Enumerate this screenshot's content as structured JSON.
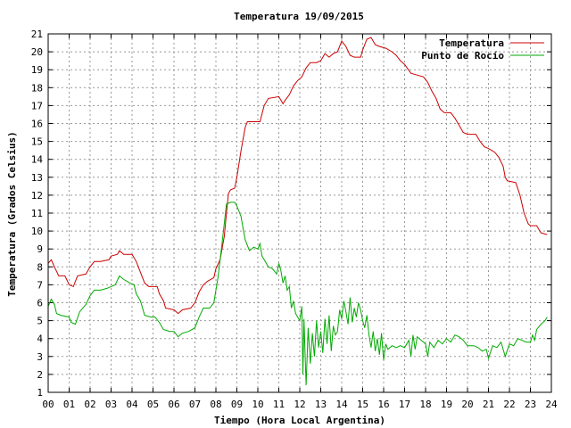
{
  "chart_data": {
    "type": "line",
    "title": "Temperatura 19/09/2015",
    "xlabel": "Tiempo (Hora Local Argentina)",
    "ylabel": "Temperatura (Grados Celsius)",
    "xlim": [
      0,
      24
    ],
    "ylim": [
      1,
      21
    ],
    "grid": true,
    "legend_position": "top-right",
    "x_ticks": [
      "00",
      "01",
      "02",
      "03",
      "04",
      "05",
      "06",
      "07",
      "08",
      "09",
      "10",
      "11",
      "12",
      "13",
      "14",
      "15",
      "16",
      "17",
      "18",
      "19",
      "20",
      "21",
      "22",
      "23",
      "24"
    ],
    "y_ticks": [
      "1",
      "2",
      "3",
      "4",
      "5",
      "6",
      "7",
      "8",
      "9",
      "10",
      "11",
      "12",
      "13",
      "14",
      "15",
      "16",
      "17",
      "18",
      "19",
      "20",
      "21"
    ],
    "series": [
      {
        "name": "Temperatura",
        "color": "#cc0000",
        "points": [
          [
            0,
            8.2
          ],
          [
            0.15,
            8.4
          ],
          [
            0.3,
            8.0
          ],
          [
            0.5,
            7.5
          ],
          [
            0.8,
            7.5
          ],
          [
            1.0,
            7.0
          ],
          [
            1.2,
            6.9
          ],
          [
            1.4,
            7.5
          ],
          [
            1.8,
            7.6
          ],
          [
            2.0,
            8.0
          ],
          [
            2.2,
            8.3
          ],
          [
            2.5,
            8.3
          ],
          [
            2.9,
            8.4
          ],
          [
            3.0,
            8.6
          ],
          [
            3.3,
            8.7
          ],
          [
            3.4,
            8.9
          ],
          [
            3.6,
            8.7
          ],
          [
            4.0,
            8.7
          ],
          [
            4.2,
            8.3
          ],
          [
            4.4,
            7.7
          ],
          [
            4.6,
            7.1
          ],
          [
            4.8,
            6.9
          ],
          [
            5.2,
            6.9
          ],
          [
            5.3,
            6.5
          ],
          [
            5.5,
            6.1
          ],
          [
            5.6,
            5.7
          ],
          [
            6.0,
            5.6
          ],
          [
            6.2,
            5.4
          ],
          [
            6.4,
            5.6
          ],
          [
            6.8,
            5.7
          ],
          [
            7.0,
            6.0
          ],
          [
            7.2,
            6.6
          ],
          [
            7.4,
            7.0
          ],
          [
            7.6,
            7.2
          ],
          [
            7.9,
            7.4
          ],
          [
            8.0,
            7.9
          ],
          [
            8.2,
            8.4
          ],
          [
            8.4,
            9.7
          ],
          [
            8.5,
            11.0
          ],
          [
            8.6,
            12.1
          ],
          [
            8.7,
            12.3
          ],
          [
            8.9,
            12.4
          ],
          [
            9.0,
            13.0
          ],
          [
            9.2,
            14.5
          ],
          [
            9.4,
            15.8
          ],
          [
            9.5,
            16.1
          ],
          [
            10.1,
            16.1
          ],
          [
            10.3,
            17.0
          ],
          [
            10.5,
            17.4
          ],
          [
            11.0,
            17.5
          ],
          [
            11.2,
            17.1
          ],
          [
            11.3,
            17.3
          ],
          [
            11.5,
            17.6
          ],
          [
            11.7,
            18.1
          ],
          [
            11.9,
            18.4
          ],
          [
            12.1,
            18.6
          ],
          [
            12.3,
            19.1
          ],
          [
            12.5,
            19.4
          ],
          [
            12.8,
            19.4
          ],
          [
            13.0,
            19.5
          ],
          [
            13.2,
            19.9
          ],
          [
            13.4,
            19.7
          ],
          [
            13.6,
            19.9
          ],
          [
            13.8,
            20.0
          ],
          [
            14.0,
            20.6
          ],
          [
            14.2,
            20.3
          ],
          [
            14.4,
            19.8
          ],
          [
            14.6,
            19.7
          ],
          [
            14.9,
            19.7
          ],
          [
            15.0,
            20.1
          ],
          [
            15.2,
            20.7
          ],
          [
            15.4,
            20.8
          ],
          [
            15.6,
            20.4
          ],
          [
            15.8,
            20.3
          ],
          [
            16.1,
            20.2
          ],
          [
            16.4,
            20.0
          ],
          [
            16.6,
            19.8
          ],
          [
            16.8,
            19.5
          ],
          [
            17.0,
            19.3
          ],
          [
            17.3,
            18.8
          ],
          [
            17.6,
            18.7
          ],
          [
            17.9,
            18.6
          ],
          [
            18.1,
            18.3
          ],
          [
            18.3,
            17.8
          ],
          [
            18.5,
            17.4
          ],
          [
            18.7,
            16.8
          ],
          [
            18.9,
            16.6
          ],
          [
            19.2,
            16.6
          ],
          [
            19.4,
            16.3
          ],
          [
            19.6,
            15.9
          ],
          [
            19.8,
            15.5
          ],
          [
            20.0,
            15.4
          ],
          [
            20.4,
            15.4
          ],
          [
            20.6,
            15.0
          ],
          [
            20.8,
            14.7
          ],
          [
            21.0,
            14.6
          ],
          [
            21.3,
            14.4
          ],
          [
            21.5,
            14.1
          ],
          [
            21.7,
            13.6
          ],
          [
            21.8,
            13.0
          ],
          [
            21.9,
            12.8
          ],
          [
            22.3,
            12.7
          ],
          [
            22.5,
            12.0
          ],
          [
            22.7,
            11.0
          ],
          [
            22.9,
            10.4
          ],
          [
            23.0,
            10.3
          ],
          [
            23.3,
            10.3
          ],
          [
            23.5,
            9.9
          ],
          [
            23.8,
            9.8
          ]
        ]
      },
      {
        "name": "Punto de Rocío",
        "color": "#00aa00",
        "points": [
          [
            0,
            5.8
          ],
          [
            0.15,
            6.2
          ],
          [
            0.3,
            5.9
          ],
          [
            0.4,
            5.4
          ],
          [
            0.6,
            5.3
          ],
          [
            1.0,
            5.2
          ],
          [
            1.1,
            4.9
          ],
          [
            1.3,
            4.8
          ],
          [
            1.5,
            5.5
          ],
          [
            1.8,
            5.9
          ],
          [
            2.0,
            6.4
          ],
          [
            2.2,
            6.7
          ],
          [
            2.5,
            6.7
          ],
          [
            2.8,
            6.8
          ],
          [
            3.0,
            6.9
          ],
          [
            3.2,
            7.0
          ],
          [
            3.4,
            7.5
          ],
          [
            3.6,
            7.3
          ],
          [
            3.9,
            7.1
          ],
          [
            4.1,
            7.0
          ],
          [
            4.2,
            6.5
          ],
          [
            4.4,
            6.1
          ],
          [
            4.5,
            5.7
          ],
          [
            4.6,
            5.3
          ],
          [
            4.9,
            5.2
          ],
          [
            5.1,
            5.2
          ],
          [
            5.3,
            4.9
          ],
          [
            5.5,
            4.5
          ],
          [
            5.8,
            4.4
          ],
          [
            6.0,
            4.4
          ],
          [
            6.2,
            4.1
          ],
          [
            6.4,
            4.3
          ],
          [
            6.7,
            4.4
          ],
          [
            7.0,
            4.6
          ],
          [
            7.2,
            5.2
          ],
          [
            7.4,
            5.7
          ],
          [
            7.7,
            5.7
          ],
          [
            7.9,
            6.0
          ],
          [
            8.1,
            7.4
          ],
          [
            8.3,
            9.4
          ],
          [
            8.5,
            11.5
          ],
          [
            8.7,
            11.6
          ],
          [
            8.9,
            11.6
          ],
          [
            9.0,
            11.4
          ],
          [
            9.2,
            10.8
          ],
          [
            9.3,
            10.1
          ],
          [
            9.4,
            9.5
          ],
          [
            9.6,
            8.9
          ],
          [
            9.8,
            9.1
          ],
          [
            10.0,
            9.0
          ],
          [
            10.1,
            9.3
          ],
          [
            10.2,
            8.6
          ],
          [
            10.3,
            8.4
          ],
          [
            10.5,
            8.0
          ],
          [
            10.7,
            7.9
          ],
          [
            10.9,
            7.6
          ],
          [
            11.0,
            8.2
          ],
          [
            11.1,
            7.8
          ],
          [
            11.2,
            7.1
          ],
          [
            11.3,
            7.5
          ],
          [
            11.4,
            6.7
          ],
          [
            11.5,
            6.9
          ],
          [
            11.6,
            5.7
          ],
          [
            11.7,
            6.1
          ],
          [
            11.8,
            5.4
          ],
          [
            12.0,
            5.0
          ],
          [
            12.1,
            5.8
          ],
          [
            12.15,
            2.0
          ],
          [
            12.2,
            5.1
          ],
          [
            12.3,
            1.4
          ],
          [
            12.4,
            4.6
          ],
          [
            12.5,
            2.6
          ],
          [
            12.6,
            4.3
          ],
          [
            12.7,
            3.0
          ],
          [
            12.8,
            5.0
          ],
          [
            12.9,
            3.5
          ],
          [
            13.0,
            4.4
          ],
          [
            13.1,
            3.2
          ],
          [
            13.2,
            5.1
          ],
          [
            13.3,
            3.7
          ],
          [
            13.4,
            5.3
          ],
          [
            13.5,
            3.3
          ],
          [
            13.6,
            4.7
          ],
          [
            13.7,
            4.2
          ],
          [
            13.8,
            4.4
          ],
          [
            13.9,
            5.6
          ],
          [
            14.0,
            5.1
          ],
          [
            14.1,
            6.1
          ],
          [
            14.2,
            5.5
          ],
          [
            14.3,
            4.8
          ],
          [
            14.4,
            6.3
          ],
          [
            14.5,
            4.9
          ],
          [
            14.6,
            5.7
          ],
          [
            14.7,
            5.2
          ],
          [
            14.8,
            6.0
          ],
          [
            14.9,
            5.6
          ],
          [
            15.0,
            5.0
          ],
          [
            15.1,
            4.6
          ],
          [
            15.2,
            5.3
          ],
          [
            15.3,
            4.2
          ],
          [
            15.4,
            3.5
          ],
          [
            15.5,
            4.4
          ],
          [
            15.6,
            3.3
          ],
          [
            15.7,
            4.0
          ],
          [
            15.8,
            3.1
          ],
          [
            15.9,
            4.3
          ],
          [
            16.0,
            2.8
          ],
          [
            16.1,
            3.7
          ],
          [
            16.2,
            3.4
          ],
          [
            16.4,
            3.6
          ],
          [
            16.6,
            3.5
          ],
          [
            16.8,
            3.6
          ],
          [
            17.0,
            3.5
          ],
          [
            17.2,
            3.9
          ],
          [
            17.3,
            3.0
          ],
          [
            17.4,
            4.2
          ],
          [
            17.5,
            3.4
          ],
          [
            17.6,
            4.1
          ],
          [
            17.8,
            3.9
          ],
          [
            18.0,
            3.7
          ],
          [
            18.1,
            3.0
          ],
          [
            18.2,
            3.8
          ],
          [
            18.4,
            3.5
          ],
          [
            18.6,
            3.9
          ],
          [
            18.8,
            3.7
          ],
          [
            19.0,
            4.0
          ],
          [
            19.2,
            3.8
          ],
          [
            19.4,
            4.2
          ],
          [
            19.6,
            4.1
          ],
          [
            19.8,
            3.9
          ],
          [
            20.0,
            3.6
          ],
          [
            20.3,
            3.6
          ],
          [
            20.5,
            3.5
          ],
          [
            20.7,
            3.3
          ],
          [
            20.9,
            3.4
          ],
          [
            21.0,
            2.9
          ],
          [
            21.2,
            3.6
          ],
          [
            21.4,
            3.5
          ],
          [
            21.6,
            3.8
          ],
          [
            21.8,
            3.0
          ],
          [
            22.0,
            3.7
          ],
          [
            22.2,
            3.6
          ],
          [
            22.4,
            4.0
          ],
          [
            22.6,
            3.9
          ],
          [
            22.8,
            3.8
          ],
          [
            23.0,
            3.8
          ],
          [
            23.1,
            4.2
          ],
          [
            23.2,
            3.9
          ],
          [
            23.3,
            4.5
          ],
          [
            23.5,
            4.8
          ],
          [
            23.7,
            5.0
          ],
          [
            23.8,
            5.2
          ]
        ]
      }
    ]
  }
}
